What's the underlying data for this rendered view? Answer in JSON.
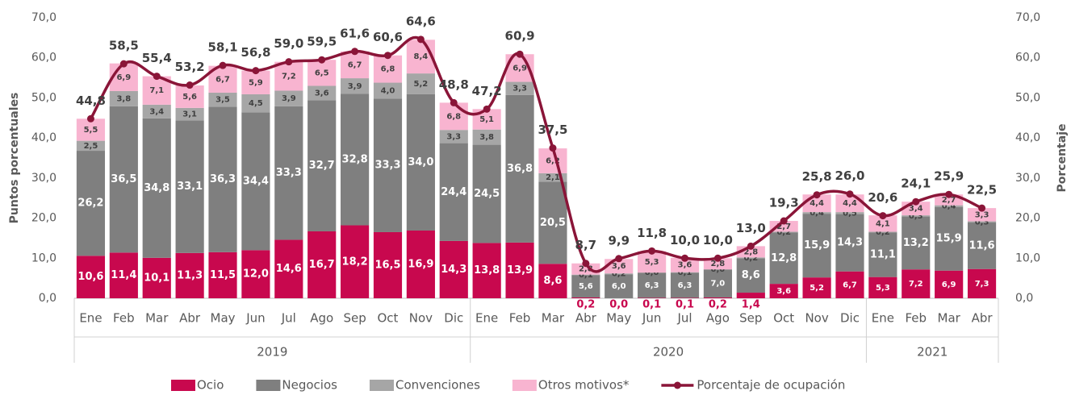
{
  "chart_data": {
    "type": "bar",
    "stacked": true,
    "y_label": "Puntos porcentuales",
    "y2_label": "Porcentaje",
    "category_groups": [
      {
        "label": "2019",
        "categories": [
          "Ene",
          "Feb",
          "Mar",
          "Abr",
          "May",
          "Jun",
          "Jul",
          "Ago",
          "Sep",
          "Oct",
          "Nov",
          "Dic"
        ]
      },
      {
        "label": "2020",
        "categories": [
          "Ene",
          "Feb",
          "Mar",
          "Abr",
          "May",
          "Jun",
          "Jul",
          "Ago",
          "Sep",
          "Oct",
          "Nov",
          "Dic"
        ]
      },
      {
        "label": "2021",
        "categories": [
          "Ene",
          "Feb",
          "Mar",
          "Abr"
        ]
      }
    ],
    "ylim": [
      0,
      70
    ],
    "yticks": [
      {
        "value": 0,
        "label": "0,0"
      },
      {
        "value": 10,
        "label": "10,0"
      },
      {
        "value": 20,
        "label": "20,0"
      },
      {
        "value": 30,
        "label": "30,0"
      },
      {
        "value": 40,
        "label": "40,0"
      },
      {
        "value": 50,
        "label": "50,0"
      },
      {
        "value": 60,
        "label": "60,0"
      },
      {
        "value": 70,
        "label": "70,0"
      }
    ],
    "y2lim": [
      0,
      70
    ],
    "y2ticks": [
      {
        "value": 0,
        "label": "0,0"
      },
      {
        "value": 10,
        "label": "10,0"
      },
      {
        "value": 20,
        "label": "20,0"
      },
      {
        "value": 30,
        "label": "30,0"
      },
      {
        "value": 40,
        "label": "40,0"
      },
      {
        "value": 50,
        "label": "50,0"
      },
      {
        "value": 60,
        "label": "60,0"
      },
      {
        "value": 70,
        "label": "70,0"
      }
    ],
    "legend": "bottom",
    "series": [
      {
        "name": "Ocio",
        "type": "bar",
        "color": "#c8084e",
        "values": [
          10.6,
          11.4,
          10.1,
          11.3,
          11.5,
          12.0,
          14.6,
          16.7,
          18.2,
          16.5,
          16.9,
          14.3,
          13.8,
          13.9,
          8.6,
          0.2,
          0.0,
          0.1,
          0.1,
          0.2,
          1.4,
          3.6,
          5.2,
          6.7,
          5.3,
          7.2,
          6.9,
          7.3
        ],
        "value_labels": [
          "10,6",
          "11,4",
          "10,1",
          "11,3",
          "11,5",
          "12,0",
          "14,6",
          "16,7",
          "18,2",
          "16,5",
          "16,9",
          "14,3",
          "13,8",
          "13,9",
          "8,6",
          "0,2",
          "0,0",
          "0,1",
          "0,1",
          "0,2",
          "1,4",
          "3,6",
          "5,2",
          "6,7",
          "5,3",
          "7,2",
          "6,9",
          "7,3"
        ]
      },
      {
        "name": "Negocios",
        "type": "bar",
        "color": "#7f7f7f",
        "values": [
          26.2,
          36.5,
          34.8,
          33.1,
          36.3,
          34.4,
          33.3,
          32.7,
          32.8,
          33.3,
          34.0,
          24.4,
          24.5,
          36.8,
          20.5,
          5.6,
          6.0,
          6.3,
          6.3,
          7.0,
          8.6,
          12.8,
          15.9,
          14.3,
          11.1,
          13.2,
          15.9,
          11.6
        ],
        "value_labels": [
          "26,2",
          "36,5",
          "34,8",
          "33,1",
          "36,3",
          "34,4",
          "33,3",
          "32,7",
          "32,8",
          "33,3",
          "34,0",
          "24,4",
          "24,5",
          "36,8",
          "20,5",
          "5,6",
          "6,0",
          "6,3",
          "6,3",
          "7,0",
          "8,6",
          "12,8",
          "15,9",
          "14,3",
          "11,1",
          "13,2",
          "15,9",
          "11,6"
        ]
      },
      {
        "name": "Convenciones",
        "type": "bar",
        "color": "#a6a6a6",
        "values": [
          2.5,
          3.8,
          3.4,
          3.1,
          3.5,
          4.5,
          3.9,
          3.6,
          3.9,
          4.0,
          5.2,
          3.3,
          3.8,
          3.3,
          2.1,
          0.1,
          0.2,
          0.0,
          0.1,
          0.0,
          0.2,
          0.2,
          0.4,
          0.5,
          0.2,
          0.3,
          0.4,
          0.3
        ],
        "value_labels": [
          "2,5",
          "3,8",
          "3,4",
          "3,1",
          "3,5",
          "4,5",
          "3,9",
          "3,6",
          "3,9",
          "4,0",
          "5,2",
          "3,3",
          "3,8",
          "3,3",
          "2,1",
          "0,1",
          "0,2",
          "0,0",
          "0,1",
          "0,0",
          "0,2",
          "0,2",
          "0,4",
          "0,5",
          "0,2",
          "0,3",
          "0,4",
          "0,3"
        ]
      },
      {
        "name": "Otros motivos*",
        "type": "bar",
        "color": "#f8b4d0",
        "values": [
          5.5,
          6.9,
          7.1,
          5.6,
          6.7,
          5.9,
          7.2,
          6.5,
          6.7,
          6.8,
          8.4,
          6.8,
          5.1,
          6.9,
          6.2,
          2.8,
          3.6,
          5.3,
          3.6,
          2.8,
          2.8,
          2.7,
          4.4,
          4.4,
          4.1,
          3.4,
          2.7,
          3.3
        ],
        "value_labels": [
          "5,5",
          "6,9",
          "7,1",
          "5,6",
          "6,7",
          "5,9",
          "7,2",
          "6,5",
          "6,7",
          "6,8",
          "8,4",
          "6,8",
          "5,1",
          "6,9",
          "6,2",
          "2,8",
          "3,6",
          "5,3",
          "3,6",
          "2,8",
          "2,8",
          "2,7",
          "4,4",
          "4,4",
          "4,1",
          "3,4",
          "2,7",
          "3,3"
        ]
      },
      {
        "name": "Porcentaje de ocupación",
        "type": "line",
        "axis": "y2",
        "color": "#8a1538",
        "values": [
          44.8,
          58.5,
          55.4,
          53.2,
          58.1,
          56.8,
          59.0,
          59.5,
          61.6,
          60.6,
          64.6,
          48.8,
          47.2,
          60.9,
          37.5,
          8.7,
          9.9,
          11.8,
          10.0,
          10.0,
          13.0,
          19.3,
          25.8,
          26.0,
          20.6,
          24.1,
          25.9,
          22.5
        ],
        "value_labels": [
          "44,8",
          "58,5",
          "55,4",
          "53,2",
          "58,1",
          "56,8",
          "59,0",
          "59,5",
          "61,6",
          "60,6",
          "64,6",
          "48,8",
          "47,2",
          "60,9",
          "37,5",
          "8,7",
          "9,9",
          "11,8",
          "10,0",
          "10,0",
          "13,0",
          "19,3",
          "25,8",
          "26,0",
          "20,6",
          "24,1",
          "25,9",
          "22,5"
        ]
      }
    ]
  }
}
